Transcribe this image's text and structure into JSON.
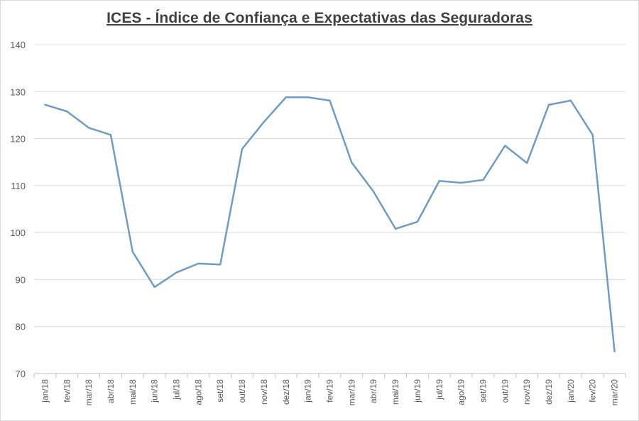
{
  "chart_data": {
    "type": "line",
    "title": "ICES - Índice de Confiança e Expectativas das Seguradoras",
    "xlabel": "",
    "ylabel": "",
    "ylim": [
      70,
      140
    ],
    "yticks": [
      70,
      80,
      90,
      100,
      110,
      120,
      130,
      140
    ],
    "grid": true,
    "legend": "none",
    "categories": [
      "jan/18",
      "fev/18",
      "mar/18",
      "abr/18",
      "mai/18",
      "jun/18",
      "jul/18",
      "ago/18",
      "set/18",
      "out/18",
      "nov/18",
      "dez/18",
      "jan/19",
      "fev/19",
      "mar/19",
      "abr/19",
      "mai/19",
      "jun/19",
      "jul/19",
      "ago/19",
      "set/19",
      "out/19",
      "nov/19",
      "dez/19",
      "jan/20",
      "fev/20",
      "mar/20"
    ],
    "series": [
      {
        "name": "",
        "color": "#6e9cc4",
        "values": [
          127.2,
          125.8,
          122.3,
          120.8,
          95.9,
          88.4,
          91.5,
          93.4,
          93.2,
          117.8,
          123.6,
          128.8,
          128.8,
          128.1,
          114.9,
          108.7,
          100.8,
          102.3,
          111.0,
          110.6,
          111.2,
          118.5,
          114.8,
          127.2,
          128.1,
          120.8,
          74.7
        ]
      }
    ]
  }
}
